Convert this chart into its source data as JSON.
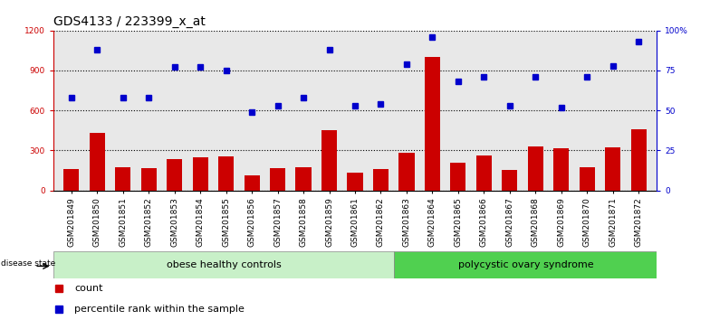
{
  "title": "GDS4133 / 223399_x_at",
  "samples": [
    "GSM201849",
    "GSM201850",
    "GSM201851",
    "GSM201852",
    "GSM201853",
    "GSM201854",
    "GSM201855",
    "GSM201856",
    "GSM201857",
    "GSM201858",
    "GSM201859",
    "GSM201861",
    "GSM201862",
    "GSM201863",
    "GSM201864",
    "GSM201865",
    "GSM201866",
    "GSM201867",
    "GSM201868",
    "GSM201869",
    "GSM201870",
    "GSM201871",
    "GSM201872"
  ],
  "counts": [
    160,
    430,
    175,
    165,
    235,
    245,
    255,
    110,
    165,
    175,
    450,
    130,
    160,
    285,
    1000,
    210,
    265,
    155,
    330,
    315,
    175,
    325,
    460
  ],
  "percentiles_pct": [
    58,
    88,
    58,
    58,
    77,
    77,
    75,
    49,
    53,
    58,
    88,
    53,
    54,
    79,
    96,
    68,
    71,
    53,
    71,
    52,
    71,
    78,
    93
  ],
  "group1_count": 13,
  "group2_count": 10,
  "group1_label": "obese healthy controls",
  "group2_label": "polycystic ovary syndrome",
  "disease_state_label": "disease state",
  "ylim_left": [
    0,
    1200
  ],
  "ylim_right": [
    0,
    100
  ],
  "yticks_left": [
    0,
    300,
    600,
    900,
    1200
  ],
  "ytick_labels_left": [
    "0",
    "300",
    "600",
    "900",
    "1200"
  ],
  "yticks_right": [
    0,
    25,
    50,
    75,
    100
  ],
  "ytick_labels_right": [
    "0",
    "25",
    "50",
    "75",
    "100%"
  ],
  "bar_color": "#cc0000",
  "dot_color": "#0000cc",
  "group1_bg": "#c8f0c8",
  "group2_bg": "#50d050",
  "legend_count_label": "count",
  "legend_pct_label": "percentile rank within the sample",
  "title_fontsize": 10,
  "tick_fontsize": 6.5,
  "label_fontsize": 8,
  "axes_bg": "#e8e8e8"
}
